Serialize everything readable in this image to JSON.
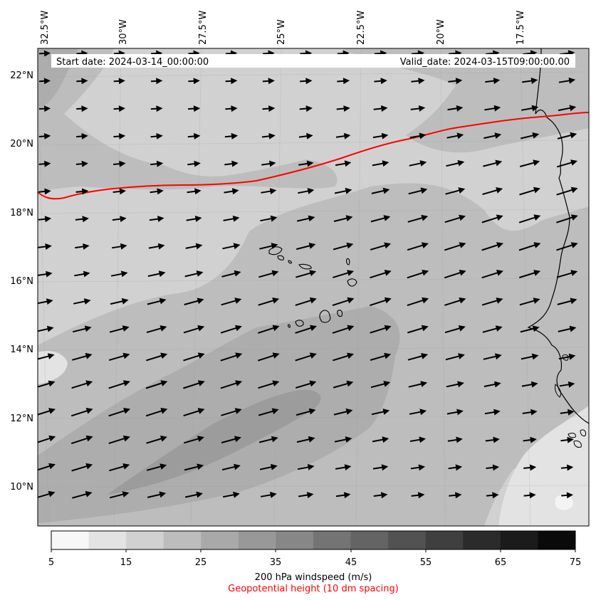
{
  "header": {
    "start_label": "Start date: 2024-03-14_00:00:00",
    "valid_label": "Valid_date: 2024-03-15T09:00:00.00"
  },
  "lon_labels": [
    "32.5°W",
    "30°W",
    "27.5°W",
    "25°W",
    "22.5°W",
    "20°W",
    "17.5°W"
  ],
  "lat_labels": [
    "22°N",
    "20°N",
    "18°N",
    "16°N",
    "14°N",
    "12°N",
    "10°N"
  ],
  "colorbar": {
    "ticks": [
      "5",
      "15",
      "25",
      "35",
      "45",
      "55",
      "65",
      "75"
    ],
    "colors": [
      "#f7f7f7",
      "#e3e3e3",
      "#d1d1d1",
      "#bdbdbd",
      "#a9a9a9",
      "#989898",
      "#878787",
      "#747474",
      "#646464",
      "#525252",
      "#3f3f3f",
      "#2b2b2b",
      "#1b1b1b",
      "#0a0a0a"
    ],
    "label": "200 hPa windspeed (m/s)",
    "sublabel": "Geopotential height (10 dm spacing)"
  },
  "contour_color": "#ff0000",
  "legend_sublabel_color": "#ff0000",
  "icons": [
    "wind-arrow-icon"
  ]
}
